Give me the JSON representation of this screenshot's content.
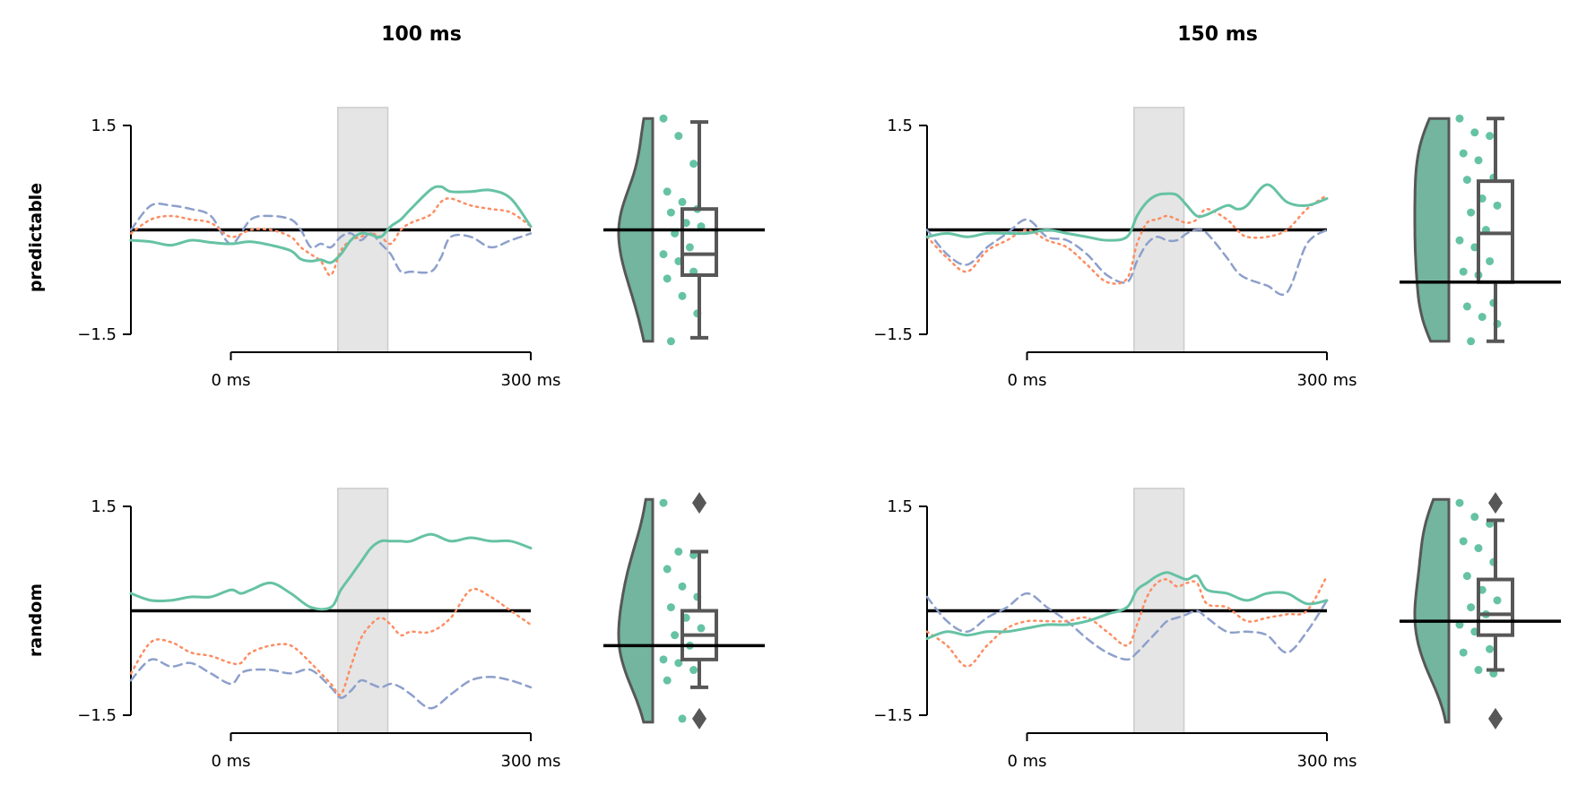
{
  "colors": {
    "green": "#66c2a5",
    "orange": "#fc8d62",
    "blue": "#8da0cb",
    "violin": "#73b59f",
    "box": "#575757",
    "zero": "#000000",
    "shade": "#e5e5e5"
  },
  "chart_data": {
    "type": "line",
    "columns": [
      "100 ms",
      "150 ms"
    ],
    "rows": [
      "predictable",
      "random"
    ],
    "y_ticks": [
      1.5,
      -1.5
    ],
    "y_tick_labels": [
      "1.5",
      "−1.5"
    ],
    "ylim": [
      -1.5,
      1.5
    ],
    "xlim": [
      -100,
      300
    ],
    "x_ticks": [
      0,
      300
    ],
    "x_tick_labels": [
      "0 ms",
      "300 ms"
    ],
    "shaded_window": [
      107,
      157
    ],
    "line_series": [
      {
        "color": "green",
        "style": "solid"
      },
      {
        "color": "orange",
        "style": "dotted"
      },
      {
        "color": "blue",
        "style": "dashed"
      }
    ],
    "panels": [
      {
        "column": "100 ms",
        "row": "predictable",
        "x": [
          -100,
          -80,
          -60,
          -40,
          -20,
          0,
          20,
          40,
          60,
          70,
          80,
          90,
          100,
          110,
          120,
          130,
          140,
          150,
          160,
          170,
          180,
          200,
          210,
          220,
          240,
          260,
          280,
          300
        ],
        "green": [
          -0.15,
          -0.17,
          -0.22,
          -0.15,
          -0.18,
          -0.2,
          -0.17,
          -0.22,
          -0.3,
          -0.42,
          -0.45,
          -0.43,
          -0.47,
          -0.35,
          -0.15,
          -0.05,
          -0.07,
          -0.1,
          0.05,
          0.15,
          0.3,
          0.58,
          0.62,
          0.55,
          0.55,
          0.57,
          0.45,
          0.05
        ],
        "orange": [
          -0.05,
          0.15,
          0.2,
          0.15,
          0.1,
          -0.1,
          0.0,
          0.0,
          -0.1,
          -0.25,
          -0.35,
          -0.45,
          -0.65,
          -0.3,
          -0.15,
          -0.1,
          -0.05,
          -0.1,
          -0.2,
          0.0,
          0.1,
          0.22,
          0.4,
          0.45,
          0.35,
          0.3,
          0.25,
          0.05
        ],
        "blue": [
          0.0,
          0.35,
          0.35,
          0.3,
          0.2,
          -0.2,
          0.15,
          0.2,
          0.15,
          0.0,
          -0.25,
          -0.2,
          -0.25,
          -0.1,
          -0.05,
          -0.15,
          -0.05,
          -0.2,
          -0.35,
          -0.6,
          -0.6,
          -0.6,
          -0.4,
          -0.1,
          -0.1,
          -0.25,
          -0.15,
          -0.05
        ],
        "baseline": 0.0,
        "violin": {
          "min": -1.6,
          "max": 1.6,
          "median": -0.35,
          "q1": -0.65,
          "q3": 0.3,
          "whisker_low": -1.55,
          "whisker_high": 1.55,
          "outliers": [],
          "zero": 0.0
        },
        "points": [
          1.6,
          1.35,
          0.95,
          0.55,
          0.4,
          0.3,
          0.25,
          0.1,
          0.05,
          -0.05,
          -0.25,
          -0.35,
          -0.45,
          -0.6,
          -0.7,
          -0.95,
          -1.2,
          -1.6
        ]
      },
      {
        "column": "150 ms",
        "row": "predictable",
        "x": [
          -100,
          -80,
          -60,
          -40,
          -20,
          0,
          20,
          40,
          60,
          80,
          100,
          110,
          120,
          130,
          140,
          150,
          160,
          170,
          180,
          200,
          210,
          220,
          240,
          260,
          280,
          300
        ],
        "green": [
          -0.1,
          -0.05,
          -0.1,
          -0.05,
          -0.05,
          -0.05,
          0.0,
          -0.05,
          -0.1,
          -0.15,
          -0.1,
          0.2,
          0.4,
          0.5,
          0.52,
          0.5,
          0.35,
          0.2,
          0.22,
          0.35,
          0.3,
          0.35,
          0.65,
          0.4,
          0.35,
          0.45
        ],
        "orange": [
          -0.1,
          -0.4,
          -0.6,
          -0.3,
          -0.15,
          0.0,
          -0.15,
          -0.25,
          -0.5,
          -0.75,
          -0.7,
          -0.2,
          0.1,
          0.15,
          0.2,
          0.15,
          0.1,
          0.15,
          0.3,
          0.15,
          0.0,
          -0.1,
          -0.1,
          0.0,
          0.3,
          0.5
        ],
        "blue": [
          0.0,
          -0.35,
          -0.5,
          -0.25,
          -0.05,
          0.15,
          -0.1,
          -0.15,
          -0.35,
          -0.65,
          -0.75,
          -0.45,
          -0.2,
          -0.1,
          -0.15,
          -0.15,
          -0.05,
          0.0,
          -0.05,
          -0.4,
          -0.6,
          -0.7,
          -0.8,
          -0.9,
          -0.2,
          0.0
        ],
        "baseline": 0.0,
        "violin": {
          "min": -1.6,
          "max": 1.6,
          "median": -0.05,
          "q1": -0.75,
          "q3": 0.7,
          "whisker_low": -1.6,
          "whisker_high": 1.6,
          "outliers": [],
          "zero": -0.75
        },
        "points": [
          1.6,
          1.4,
          1.35,
          1.1,
          1.0,
          0.75,
          0.72,
          0.45,
          0.35,
          0.25,
          0.0,
          -0.15,
          -0.25,
          -0.45,
          -0.6,
          -0.65,
          -1.05,
          -1.1,
          -1.25,
          -1.35,
          -1.6
        ]
      },
      {
        "column": "100 ms",
        "row": "random",
        "x": [
          -100,
          -80,
          -60,
          -40,
          -20,
          0,
          10,
          20,
          40,
          60,
          80,
          100,
          110,
          120,
          130,
          140,
          150,
          160,
          170,
          180,
          200,
          220,
          240,
          260,
          280,
          300
        ],
        "green": [
          0.25,
          0.15,
          0.15,
          0.2,
          0.2,
          0.3,
          0.25,
          0.3,
          0.4,
          0.25,
          0.05,
          0.05,
          0.3,
          0.5,
          0.7,
          0.9,
          1.0,
          1.0,
          1.0,
          1.0,
          1.1,
          1.0,
          1.05,
          1.0,
          1.0,
          0.9
        ],
        "orange": [
          -0.9,
          -0.45,
          -0.45,
          -0.6,
          -0.65,
          -0.75,
          -0.75,
          -0.6,
          -0.5,
          -0.5,
          -0.75,
          -1.05,
          -1.2,
          -0.8,
          -0.4,
          -0.2,
          -0.1,
          -0.2,
          -0.35,
          -0.3,
          -0.3,
          -0.1,
          0.3,
          0.2,
          0.0,
          -0.2
        ],
        "blue": [
          -1.0,
          -0.7,
          -0.8,
          -0.75,
          -0.9,
          -1.05,
          -0.9,
          -0.85,
          -0.85,
          -0.9,
          -0.85,
          -1.1,
          -1.25,
          -1.15,
          -1.0,
          -1.05,
          -1.1,
          -1.05,
          -1.1,
          -1.2,
          -1.4,
          -1.2,
          -1.0,
          -0.95,
          -1.0,
          -1.1
        ],
        "baseline": 0.0,
        "violin": {
          "min": -1.6,
          "max": 1.6,
          "median": -0.35,
          "q1": -0.7,
          "q3": 0.0,
          "whisker_low": -1.1,
          "whisker_high": 0.85,
          "outliers": [
            1.55,
            -1.55
          ],
          "zero": -0.5
        },
        "points": [
          1.55,
          0.85,
          0.8,
          0.6,
          0.35,
          0.2,
          0.05,
          -0.1,
          -0.25,
          -0.35,
          -0.5,
          -0.7,
          -0.75,
          -0.85,
          -1.0,
          -1.55
        ]
      },
      {
        "column": "150 ms",
        "row": "random",
        "x": [
          -100,
          -80,
          -60,
          -40,
          -20,
          0,
          20,
          40,
          60,
          80,
          100,
          110,
          120,
          130,
          140,
          150,
          160,
          170,
          180,
          200,
          220,
          240,
          260,
          280,
          300
        ],
        "green": [
          -0.4,
          -0.3,
          -0.35,
          -0.3,
          -0.3,
          -0.25,
          -0.2,
          -0.2,
          -0.15,
          -0.05,
          0.05,
          0.3,
          0.4,
          0.5,
          0.55,
          0.5,
          0.45,
          0.5,
          0.3,
          0.25,
          0.15,
          0.25,
          0.25,
          0.1,
          0.15
        ],
        "orange": [
          -0.3,
          -0.5,
          -0.8,
          -0.5,
          -0.25,
          -0.15,
          -0.15,
          -0.15,
          -0.1,
          -0.3,
          -0.5,
          -0.2,
          0.2,
          0.4,
          0.45,
          0.35,
          0.4,
          0.4,
          0.1,
          0.05,
          -0.15,
          -0.1,
          -0.05,
          0.0,
          0.5
        ],
        "blue": [
          0.2,
          -0.15,
          -0.3,
          -0.1,
          0.05,
          0.25,
          0.05,
          -0.15,
          -0.4,
          -0.6,
          -0.7,
          -0.6,
          -0.45,
          -0.3,
          -0.15,
          -0.1,
          -0.05,
          0.0,
          -0.1,
          -0.3,
          -0.3,
          -0.35,
          -0.6,
          -0.3,
          0.15
        ],
        "baseline": 0.0,
        "violin": {
          "min": -1.6,
          "max": 1.6,
          "median": -0.05,
          "q1": -0.35,
          "q3": 0.45,
          "whisker_low": -0.85,
          "whisker_high": 1.3,
          "outliers": [
            1.55,
            -1.55
          ],
          "zero": -0.15
        },
        "points": [
          1.55,
          1.35,
          1.25,
          1.0,
          0.9,
          0.7,
          0.5,
          0.3,
          0.15,
          0.05,
          -0.05,
          -0.2,
          -0.3,
          -0.55,
          -0.6,
          -0.85,
          -0.9
        ]
      }
    ]
  }
}
